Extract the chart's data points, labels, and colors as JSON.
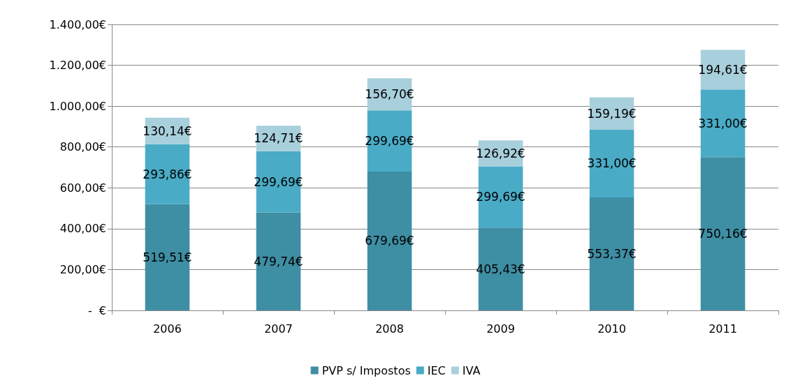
{
  "chart_data": {
    "type": "bar",
    "stacked": true,
    "grid": "y",
    "legend": "bottom",
    "categories": [
      "2006",
      "2007",
      "2008",
      "2009",
      "2010",
      "2011"
    ],
    "series": [
      {
        "name": "PVP s/ Impostos",
        "color": "#3e8ea4",
        "values": [
          519.51,
          479.74,
          679.69,
          405.43,
          553.37,
          750.16
        ],
        "value_labels": [
          "519,51€",
          "479,74€",
          "679,69€",
          "405,43€",
          "553,37€",
          "750,16€"
        ]
      },
      {
        "name": "IEC",
        "color": "#4aabc6",
        "values": [
          293.86,
          299.69,
          299.69,
          299.69,
          331.0,
          331.0
        ],
        "value_labels": [
          "293,86€",
          "299,69€",
          "299,69€",
          "299,69€",
          "331,00€",
          "331,00€"
        ]
      },
      {
        "name": "IVA",
        "color": "#a8cfdc",
        "values": [
          130.14,
          124.71,
          156.7,
          126.92,
          159.19,
          194.61
        ],
        "value_labels": [
          "130,14€",
          "124,71€",
          "156,70€",
          "126,92€",
          "159,19€",
          "194,61€"
        ]
      }
    ],
    "ylim": [
      0,
      1400
    ],
    "yticks": [
      {
        "value": 0,
        "label": "-  €"
      },
      {
        "value": 200,
        "label": "200,00€"
      },
      {
        "value": 400,
        "label": "400,00€"
      },
      {
        "value": 600,
        "label": "600,00€"
      },
      {
        "value": 800,
        "label": "800,00€"
      },
      {
        "value": 1000,
        "label": "1.000,00€"
      },
      {
        "value": 1200,
        "label": "1.200,00€"
      },
      {
        "value": 1400,
        "label": "1.400,00€"
      }
    ]
  }
}
